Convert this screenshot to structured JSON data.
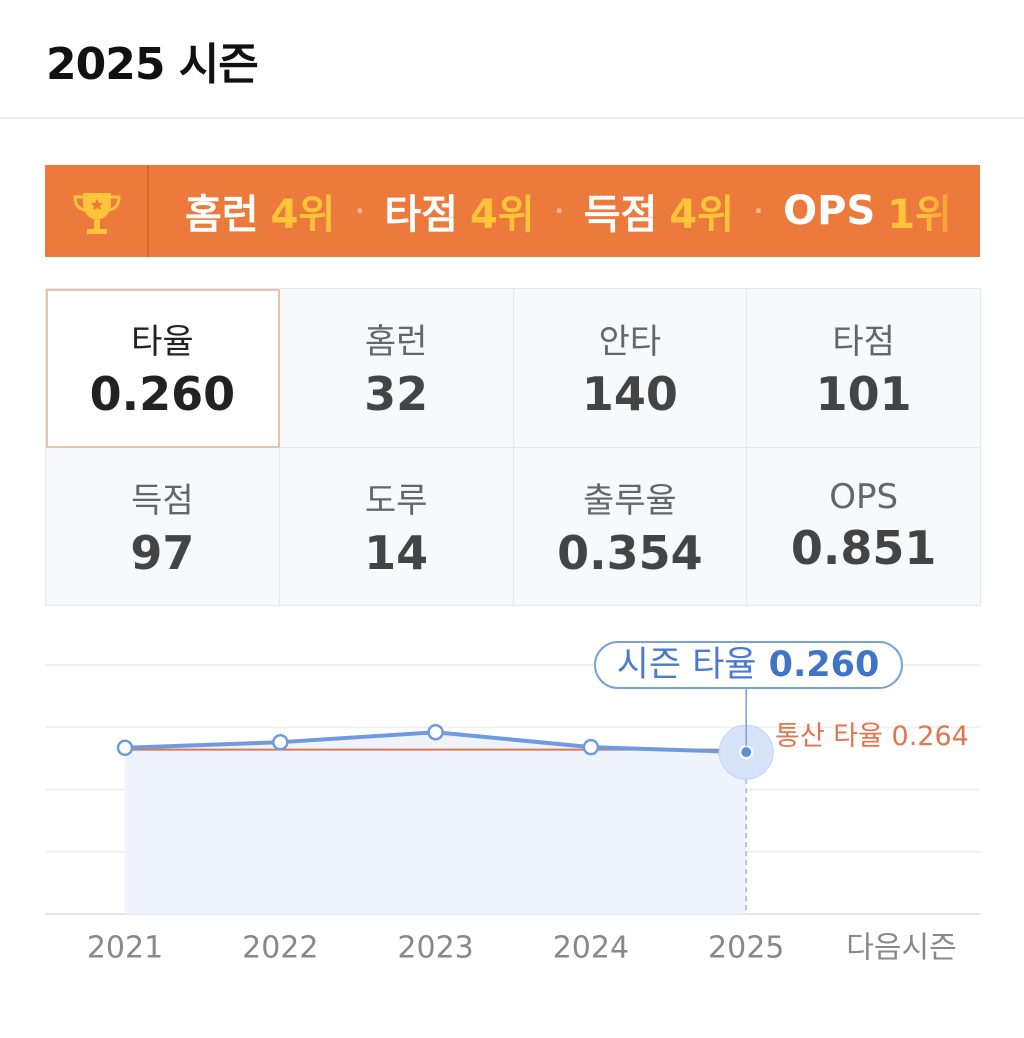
{
  "header": {
    "title": "2025 시즌"
  },
  "banner": {
    "ranks": [
      {
        "label": "홈런",
        "rank": "4위"
      },
      {
        "label": "타점",
        "rank": "4위"
      },
      {
        "label": "득점",
        "rank": "4위"
      },
      {
        "label": "OPS",
        "rank": "1위"
      }
    ]
  },
  "stats": {
    "items": [
      {
        "label": "타율",
        "value": "0.260"
      },
      {
        "label": "홈런",
        "value": "32"
      },
      {
        "label": "안타",
        "value": "140"
      },
      {
        "label": "타점",
        "value": "101"
      },
      {
        "label": "득점",
        "value": "97"
      },
      {
        "label": "도루",
        "value": "14"
      },
      {
        "label": "출루율",
        "value": "0.354"
      },
      {
        "label": "OPS",
        "value": "0.851"
      }
    ]
  },
  "chart_data": {
    "type": "line",
    "categories": [
      "2021",
      "2022",
      "2023",
      "2024",
      "2025",
      "다음시즌"
    ],
    "series": [
      {
        "name": "시즌 타율",
        "color": "#6f9ae0",
        "values": [
          0.267,
          0.276,
          0.292,
          0.268,
          0.26,
          null
        ]
      }
    ],
    "ylim": [
      0,
      0.4
    ],
    "reference": {
      "label": "통산 타율 0.264",
      "value": 0.264,
      "color": "#e0764e"
    },
    "highlight": {
      "label": "시즌 타율",
      "value_label": "0.260"
    }
  }
}
